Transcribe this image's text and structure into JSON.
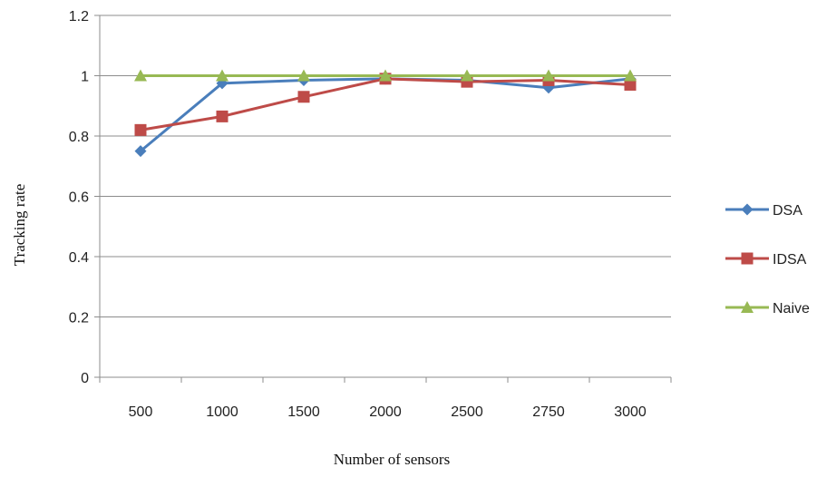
{
  "chart_data": {
    "type": "line",
    "title": "",
    "xlabel": "Number of sensors",
    "ylabel": "Tracking rate",
    "categories": [
      "500",
      "1000",
      "1500",
      "2000",
      "2500",
      "2750",
      "3000"
    ],
    "yticks": [
      "0",
      "0.2",
      "0.4",
      "0.6",
      "0.8",
      "1",
      "1.2"
    ],
    "ylim": [
      0,
      1.2
    ],
    "grid": "horizontal",
    "legend_position": "right",
    "series": [
      {
        "name": "DSA",
        "values": [
          0.75,
          0.975,
          0.985,
          0.99,
          0.985,
          0.96,
          0.99
        ],
        "color": "#4a7ebb",
        "marker": "diamond"
      },
      {
        "name": "IDSA",
        "values": [
          0.82,
          0.865,
          0.93,
          0.99,
          0.98,
          0.985,
          0.97
        ],
        "color": "#be4b48",
        "marker": "square"
      },
      {
        "name": "Naive",
        "values": [
          1.0,
          1.0,
          1.0,
          1.0,
          1.0,
          1.0,
          1.0
        ],
        "color": "#98b954",
        "marker": "triangle"
      }
    ]
  }
}
